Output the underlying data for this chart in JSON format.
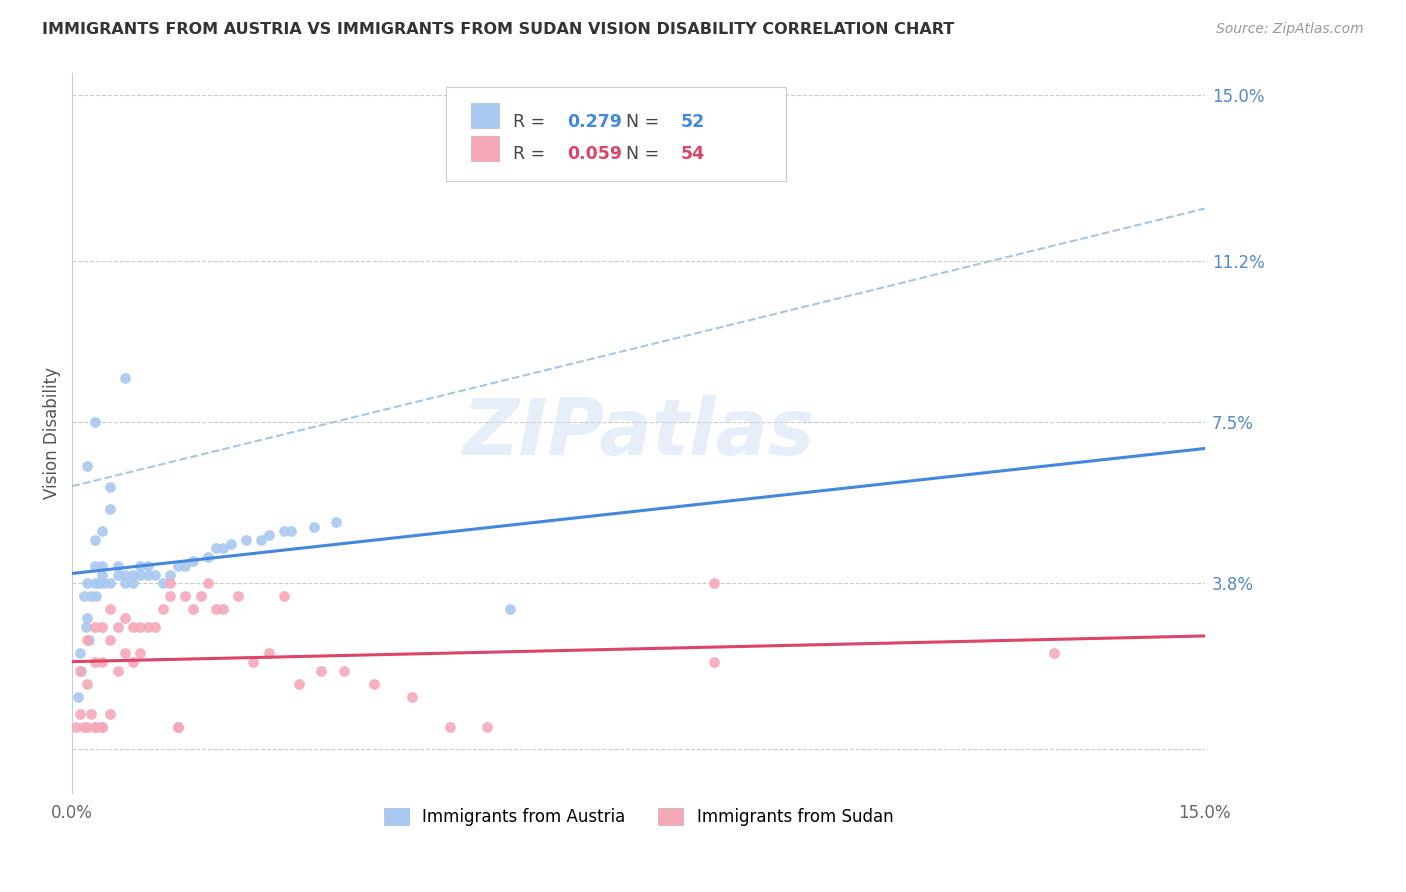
{
  "title": "IMMIGRANTS FROM AUSTRIA VS IMMIGRANTS FROM SUDAN VISION DISABILITY CORRELATION CHART",
  "source": "Source: ZipAtlas.com",
  "ylabel": "Vision Disability",
  "y_ticks": [
    0.0,
    0.038,
    0.075,
    0.112,
    0.15
  ],
  "y_tick_labels": [
    "",
    "3.8%",
    "7.5%",
    "11.2%",
    "15.0%"
  ],
  "x_lim": [
    0.0,
    0.15
  ],
  "y_lim": [
    -0.01,
    0.155
  ],
  "austria_R": 0.279,
  "austria_N": 52,
  "sudan_R": 0.059,
  "sudan_N": 54,
  "austria_color": "#a8c8f0",
  "sudan_color": "#f5a8b8",
  "austria_line_color": "#4488dd",
  "sudan_line_color": "#dd4466",
  "dashed_line_color": "#99bbdd",
  "watermark": "ZIPatlas",
  "austria_x": [
    0.0008,
    0.001,
    0.0012,
    0.0015,
    0.0018,
    0.002,
    0.002,
    0.0022,
    0.0025,
    0.003,
    0.003,
    0.003,
    0.0032,
    0.0035,
    0.004,
    0.004,
    0.004,
    0.0042,
    0.005,
    0.005,
    0.005,
    0.006,
    0.006,
    0.007,
    0.007,
    0.007,
    0.008,
    0.008,
    0.009,
    0.009,
    0.01,
    0.01,
    0.011,
    0.012,
    0.013,
    0.014,
    0.015,
    0.016,
    0.018,
    0.019,
    0.02,
    0.021,
    0.023,
    0.025,
    0.026,
    0.028,
    0.029,
    0.032,
    0.035,
    0.058,
    0.002,
    0.003
  ],
  "austria_y": [
    0.012,
    0.022,
    0.018,
    0.035,
    0.028,
    0.03,
    0.038,
    0.025,
    0.035,
    0.038,
    0.042,
    0.048,
    0.035,
    0.038,
    0.04,
    0.042,
    0.05,
    0.038,
    0.06,
    0.055,
    0.038,
    0.04,
    0.042,
    0.038,
    0.04,
    0.085,
    0.038,
    0.04,
    0.042,
    0.04,
    0.04,
    0.042,
    0.04,
    0.038,
    0.04,
    0.042,
    0.042,
    0.043,
    0.044,
    0.046,
    0.046,
    0.047,
    0.048,
    0.048,
    0.049,
    0.05,
    0.05,
    0.051,
    0.052,
    0.032,
    0.065,
    0.075
  ],
  "sudan_x": [
    0.0005,
    0.001,
    0.001,
    0.0015,
    0.002,
    0.002,
    0.0025,
    0.003,
    0.003,
    0.003,
    0.004,
    0.004,
    0.004,
    0.005,
    0.005,
    0.005,
    0.006,
    0.006,
    0.007,
    0.007,
    0.008,
    0.008,
    0.009,
    0.009,
    0.01,
    0.011,
    0.012,
    0.013,
    0.014,
    0.015,
    0.016,
    0.017,
    0.018,
    0.019,
    0.02,
    0.022,
    0.024,
    0.026,
    0.028,
    0.03,
    0.033,
    0.036,
    0.04,
    0.045,
    0.05,
    0.055,
    0.085,
    0.002,
    0.003,
    0.004,
    0.014,
    0.013,
    0.085,
    0.13
  ],
  "sudan_y": [
    0.005,
    0.008,
    0.018,
    0.005,
    0.015,
    0.025,
    0.008,
    0.005,
    0.02,
    0.028,
    0.005,
    0.02,
    0.028,
    0.008,
    0.025,
    0.032,
    0.018,
    0.028,
    0.022,
    0.03,
    0.02,
    0.028,
    0.022,
    0.028,
    0.028,
    0.028,
    0.032,
    0.035,
    0.005,
    0.035,
    0.032,
    0.035,
    0.038,
    0.032,
    0.032,
    0.035,
    0.02,
    0.022,
    0.035,
    0.015,
    0.018,
    0.018,
    0.015,
    0.012,
    0.005,
    0.005,
    0.038,
    0.005,
    0.005,
    0.005,
    0.005,
    0.038,
    0.02,
    0.022
  ]
}
